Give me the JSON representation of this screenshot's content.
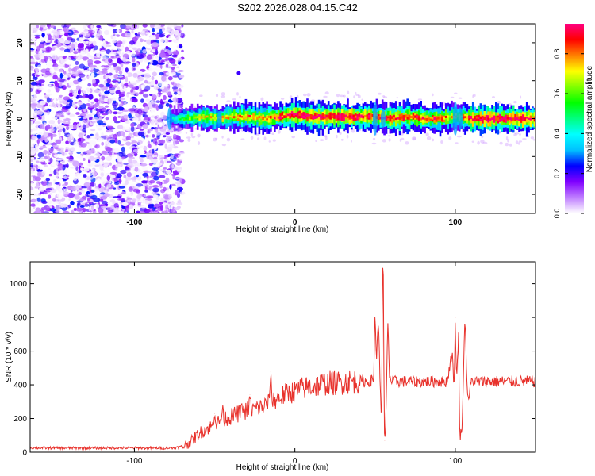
{
  "figure": {
    "title": "S202.2026.028.04.15.C42"
  },
  "chart_data": [
    {
      "type": "heatmap",
      "title": "S202.2026.028.04.15.C42",
      "xlabel": "Height of straight line (km)",
      "ylabel": "Frequency (Hz)",
      "xlim": [
        -165,
        150
      ],
      "ylim": [
        -25,
        25
      ],
      "x_ticks": [
        -100,
        0,
        100
      ],
      "x_tick_labels": [
        "-100",
        "0",
        "100"
      ],
      "y_ticks": [
        -20,
        -10,
        0,
        10,
        20
      ],
      "y_tick_labels": [
        "-20",
        "-10",
        "0",
        "10",
        "20"
      ],
      "colorbar": {
        "label": "Normalized spectral amplitude",
        "range": [
          0,
          0.95
        ],
        "ticks": [
          0.0,
          0.2,
          0.4,
          0.6,
          0.8
        ],
        "tick_labels": [
          "0.0",
          "0.2",
          "0.4",
          "0.6",
          "0.8"
        ],
        "colors": [
          "#ffffff",
          "#c080ff",
          "#8000ff",
          "#0000ff",
          "#00c0ff",
          "#00ffff",
          "#00ff80",
          "#00ff00",
          "#80ff00",
          "#ffff00",
          "#ff8000",
          "#ff0000",
          "#ff0080"
        ]
      },
      "noise_region": {
        "x_range": [
          -165,
          -70
        ],
        "y_range": [
          -25,
          25
        ]
      },
      "signal_band": {
        "description": "narrow band centered near 0 Hz",
        "x": [
          -78,
          -70,
          -60,
          -50,
          -40,
          -30,
          -20,
          -10,
          0,
          10,
          20,
          30,
          40,
          50,
          60,
          70,
          80,
          90,
          100,
          110,
          120,
          130,
          140,
          150
        ],
        "center_hz": [
          0.0,
          0.0,
          0.5,
          0.0,
          0.5,
          0.5,
          0.0,
          0.5,
          1.0,
          0.5,
          0.5,
          0.5,
          0.5,
          0.5,
          0.0,
          0.5,
          0.0,
          0.0,
          0.5,
          0.0,
          0.0,
          0.0,
          0.0,
          0.0
        ],
        "peak_amplitude": [
          0.35,
          0.55,
          0.7,
          0.7,
          0.75,
          0.8,
          0.8,
          0.85,
          0.95,
          0.95,
          0.95,
          0.95,
          0.9,
          0.85,
          0.9,
          0.9,
          0.85,
          0.85,
          0.7,
          0.95,
          0.95,
          0.95,
          0.95,
          0.9
        ]
      },
      "annotations": [
        {
          "x": -35,
          "y": 12,
          "value": 0.2
        }
      ]
    },
    {
      "type": "line",
      "xlabel": "Height of straight line (km)",
      "ylabel": "SNR (10 * v/v)",
      "xlim": [
        -165,
        150
      ],
      "ylim": [
        0,
        1130
      ],
      "x_ticks": [
        -100,
        0,
        100
      ],
      "x_tick_labels": [
        "-100",
        "0",
        "100"
      ],
      "y_ticks": [
        0,
        200,
        400,
        600,
        800,
        1000
      ],
      "y_tick_labels": [
        "0",
        "200",
        "400",
        "600",
        "800",
        "1000"
      ],
      "series": [
        {
          "name": "SNR",
          "color": "#e8322c",
          "x": [
            -165,
            -150,
            -130,
            -110,
            -90,
            -75,
            -70,
            -65,
            -60,
            -55,
            -50,
            -45,
            -40,
            -35,
            -30,
            -25,
            -20,
            -15,
            -10,
            -5,
            0,
            5,
            10,
            15,
            20,
            25,
            30,
            35,
            40,
            45,
            50,
            52,
            54,
            55,
            56,
            58,
            60,
            65,
            70,
            75,
            80,
            85,
            90,
            95,
            98,
            100,
            102,
            104,
            106,
            108,
            110,
            115,
            120,
            130,
            140,
            150
          ],
          "values": [
            25,
            25,
            25,
            25,
            25,
            25,
            35,
            60,
            110,
            140,
            160,
            200,
            210,
            230,
            250,
            260,
            270,
            300,
            320,
            350,
            360,
            380,
            390,
            400,
            410,
            410,
            415,
            420,
            420,
            420,
            430,
            700,
            200,
            1130,
            100,
            500,
            420,
            420,
            420,
            420,
            420,
            420,
            420,
            420,
            600,
            200,
            700,
            100,
            680,
            300,
            420,
            420,
            420,
            420,
            420,
            420
          ],
          "spikes": [
            {
              "x": -50,
              "y": 230
            },
            {
              "x": -45,
              "y": 280
            },
            {
              "x": -33,
              "y": 290
            },
            {
              "x": -28,
              "y": 340
            },
            {
              "x": -15,
              "y": 480
            },
            {
              "x": 50,
              "y": 850
            },
            {
              "x": 52,
              "y": 750
            },
            {
              "x": 55,
              "y": 1130
            },
            {
              "x": 56,
              "y": 70
            },
            {
              "x": 58,
              "y": 780
            },
            {
              "x": 100,
              "y": 800
            },
            {
              "x": 103,
              "y": 30
            },
            {
              "x": 106,
              "y": 780
            }
          ]
        }
      ]
    }
  ]
}
